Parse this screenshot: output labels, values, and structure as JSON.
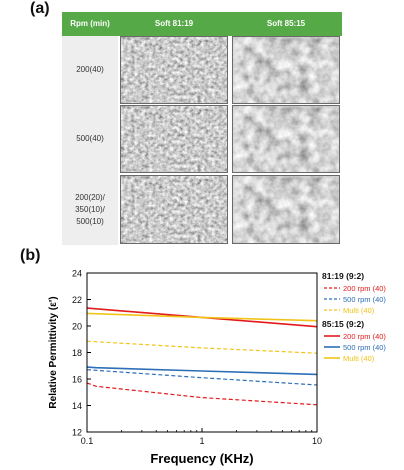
{
  "panel_labels": {
    "a": "(a)",
    "b": "(b)"
  },
  "sem_table": {
    "header": {
      "rpm": "Rpm (min)",
      "col1": "Soft 81:19",
      "col2": "Soft 85:15"
    },
    "rows": [
      {
        "label": "200(40)"
      },
      {
        "label": "500(40)"
      },
      {
        "label": "200(20)/\n350(10)/\n500(10)"
      }
    ]
  },
  "chart_data": {
    "type": "line",
    "xlabel": "Frequency (KHz)",
    "ylabel": "Relative Permittivity (ε')",
    "x_scale": "log",
    "xlim": [
      0.1,
      10
    ],
    "ylim": [
      12,
      24
    ],
    "x_ticks": [
      0.1,
      1,
      10
    ],
    "x_tick_labels": [
      "0.1",
      "1",
      "10"
    ],
    "y_ticks": [
      12,
      14,
      16,
      18,
      20,
      22,
      24
    ],
    "legend_groups": [
      {
        "title": "81:19 (9:2)",
        "series": [
          {
            "name": "200 rpm (40)",
            "color": "#e31a1c",
            "style": "dashed",
            "x": [
              0.1,
              0.12,
              1,
              10
            ],
            "y": [
              15.7,
              15.45,
              14.6,
              14.05
            ]
          },
          {
            "name": "500 rpm (40)",
            "color": "#2c6fb7",
            "style": "dashed",
            "x": [
              0.1,
              1,
              10
            ],
            "y": [
              16.7,
              16.1,
              15.55
            ]
          },
          {
            "name": "Multi (40)",
            "color": "#f0c419",
            "style": "dashed",
            "x": [
              0.1,
              1,
              10
            ],
            "y": [
              18.85,
              18.35,
              17.95
            ]
          }
        ]
      },
      {
        "title": "85:15 (9:2)",
        "series": [
          {
            "name": "200 rpm (40)",
            "color": "#e31a1c",
            "style": "solid",
            "x": [
              0.1,
              0.12,
              1,
              10
            ],
            "y": [
              21.35,
              21.3,
              20.65,
              19.95
            ]
          },
          {
            "name": "500 rpm (40)",
            "color": "#2c6fb7",
            "style": "solid",
            "x": [
              0.1,
              0.12,
              1,
              10
            ],
            "y": [
              16.9,
              16.85,
              16.6,
              16.35
            ]
          },
          {
            "name": "Multi (40)",
            "color": "#f0c419",
            "style": "solid",
            "x": [
              0.1,
              1,
              10
            ],
            "y": [
              20.95,
              20.65,
              20.4
            ]
          }
        ]
      }
    ]
  }
}
